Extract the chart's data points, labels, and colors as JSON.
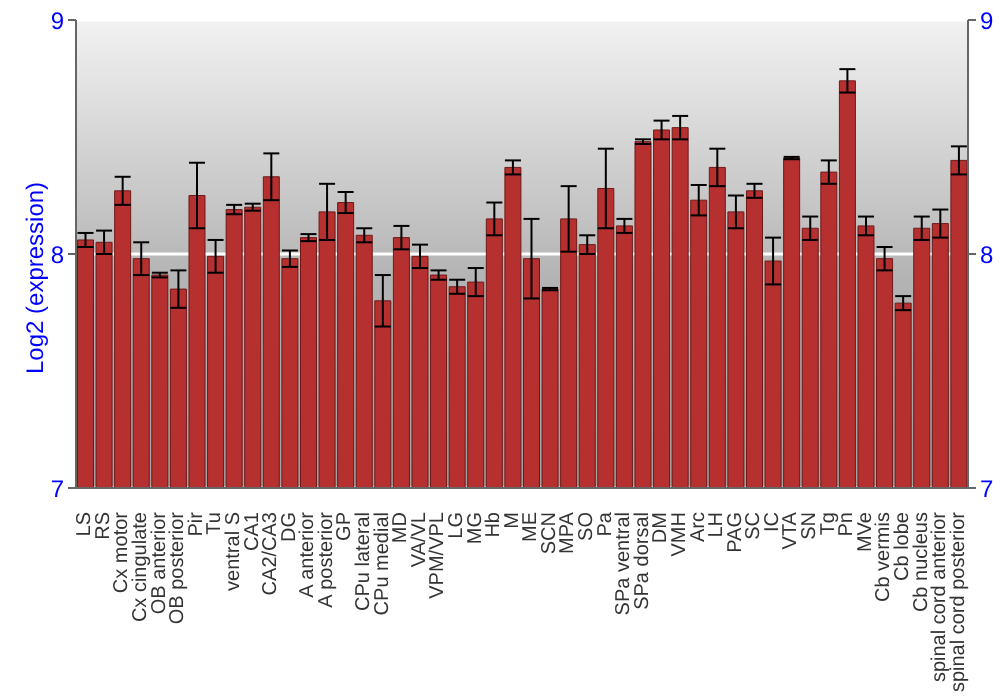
{
  "chart_data": {
    "type": "bar",
    "ylabel": "Log2 (expression)",
    "categories": [
      "LS",
      "RS",
      "Cx motor",
      "Cx cingulate",
      "OB anterior",
      "OB posterior",
      "Pir",
      "Tu",
      "ventral S",
      "CA1",
      "CA2/CA3",
      "DG",
      "A anterior",
      "A posterior",
      "GP",
      "CPu lateral",
      "CPu medial",
      "MD",
      "VA/VL",
      "VPM/VPL",
      "LG",
      "MG",
      "Hb",
      "M",
      "ME",
      "SCN",
      "MPA",
      "SO",
      "Pa",
      "SPa ventral",
      "SPa dorsal",
      "DM",
      "VMH",
      "Arc",
      "LH",
      "PAG",
      "SC",
      "IC",
      "VTA",
      "SN",
      "Tg",
      "Pn",
      "MVe",
      "Cb vermis",
      "Cb lobe",
      "Cb nucleus",
      "spinal cord anterior",
      "spinal cord posterior"
    ],
    "series": [
      {
        "color": "#b5302f",
        "values": [
          8.06,
          8.05,
          8.27,
          7.98,
          7.91,
          7.85,
          8.25,
          7.99,
          8.19,
          8.2,
          8.33,
          7.98,
          8.07,
          8.18,
          8.22,
          8.08,
          7.8,
          8.07,
          7.99,
          7.91,
          7.86,
          7.88,
          8.15,
          8.37,
          7.98,
          7.85,
          8.15,
          8.04,
          8.28,
          8.12,
          8.48,
          8.53,
          8.54,
          8.23,
          8.37,
          8.18,
          8.27,
          7.97,
          8.41,
          8.11,
          8.35,
          8.74,
          8.12,
          7.98,
          7.79,
          8.11,
          8.13,
          8.4
        ],
        "errors": [
          0.03,
          0.05,
          0.06,
          0.07,
          0.01,
          0.08,
          0.14,
          0.07,
          0.02,
          0.015,
          0.1,
          0.035,
          0.015,
          0.12,
          0.045,
          0.03,
          0.11,
          0.05,
          0.05,
          0.02,
          0.03,
          0.06,
          0.07,
          0.03,
          0.17,
          0.005,
          0.14,
          0.04,
          0.17,
          0.03,
          0.01,
          0.04,
          0.05,
          0.065,
          0.08,
          0.07,
          0.03,
          0.1,
          0.005,
          0.05,
          0.05,
          0.05,
          0.04,
          0.05,
          0.03,
          0.05,
          0.06,
          0.06
        ]
      }
    ],
    "ylim": [
      7,
      9
    ],
    "yticks": [
      7,
      8,
      9
    ],
    "y2lim": [
      7,
      9
    ],
    "y2ticks": [
      7,
      8,
      9
    ],
    "grid": "y"
  }
}
